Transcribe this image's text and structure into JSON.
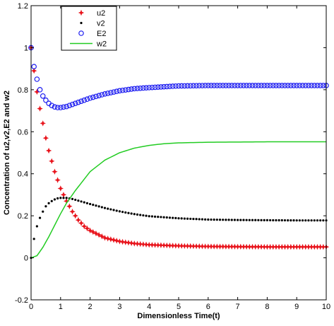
{
  "chart_data": {
    "type": "scatter",
    "title": "",
    "xlabel": "Dimensionless Time(t)",
    "ylabel": "Concentration of u2,v2,E2 and w2",
    "xlim": [
      0,
      10
    ],
    "ylim": [
      -0.2,
      1.2
    ],
    "xticks": [
      "0",
      "1",
      "2",
      "3",
      "4",
      "5",
      "6",
      "7",
      "8",
      "9",
      "10"
    ],
    "yticks": [
      "-0.2",
      "0",
      "0.2",
      "0.4",
      "0.6",
      "0.8",
      "1",
      "1.2"
    ],
    "legend_position": "top-left",
    "series": [
      {
        "name": "u2",
        "marker": "star",
        "color": "#e8141c",
        "x": [
          0,
          0.1,
          0.2,
          0.3,
          0.4,
          0.5,
          0.6,
          0.7,
          0.8,
          0.9,
          1.0,
          1.2,
          1.4,
          1.6,
          1.8,
          2.0,
          2.5,
          3.0,
          3.5,
          4.0,
          5.0,
          6.0,
          7.0,
          8.0,
          9.0,
          10.0
        ],
        "y": [
          1.0,
          0.89,
          0.79,
          0.71,
          0.64,
          0.57,
          0.51,
          0.46,
          0.41,
          0.37,
          0.33,
          0.27,
          0.22,
          0.18,
          0.15,
          0.13,
          0.095,
          0.078,
          0.068,
          0.062,
          0.057,
          0.054,
          0.053,
          0.052,
          0.052,
          0.052
        ]
      },
      {
        "name": "v2",
        "marker": "dot",
        "color": "#000000",
        "x": [
          0,
          0.1,
          0.2,
          0.3,
          0.4,
          0.5,
          0.6,
          0.7,
          0.8,
          0.9,
          1.0,
          1.2,
          1.4,
          1.6,
          1.8,
          2.0,
          2.5,
          3.0,
          3.5,
          4.0,
          5.0,
          6.0,
          7.0,
          8.0,
          9.0,
          10.0
        ],
        "y": [
          0.0,
          0.09,
          0.15,
          0.19,
          0.22,
          0.245,
          0.26,
          0.27,
          0.278,
          0.283,
          0.285,
          0.285,
          0.28,
          0.272,
          0.264,
          0.256,
          0.237,
          0.221,
          0.208,
          0.198,
          0.188,
          0.182,
          0.18,
          0.179,
          0.178,
          0.178
        ]
      },
      {
        "name": "E2",
        "marker": "circle",
        "color": "#1c1cf0",
        "x": [
          0,
          0.1,
          0.2,
          0.3,
          0.4,
          0.5,
          0.6,
          0.7,
          0.8,
          0.9,
          1.0,
          1.2,
          1.4,
          1.6,
          1.8,
          2.0,
          2.5,
          3.0,
          3.5,
          4.0,
          5.0,
          6.0,
          7.0,
          8.0,
          9.0,
          10.0
        ],
        "y": [
          1.0,
          0.91,
          0.85,
          0.8,
          0.77,
          0.75,
          0.735,
          0.725,
          0.718,
          0.715,
          0.715,
          0.72,
          0.73,
          0.74,
          0.75,
          0.76,
          0.78,
          0.795,
          0.805,
          0.81,
          0.818,
          0.82,
          0.82,
          0.82,
          0.82,
          0.82
        ]
      },
      {
        "name": "w2",
        "marker": "line",
        "color": "#22cc22",
        "x": [
          0,
          0.2,
          0.4,
          0.6,
          0.8,
          1.0,
          1.2,
          1.5,
          2.0,
          2.5,
          3.0,
          3.5,
          4.0,
          4.5,
          5.0,
          6.0,
          7.0,
          8.0,
          9.0,
          10.0
        ],
        "y": [
          0.0,
          0.01,
          0.05,
          0.1,
          0.155,
          0.21,
          0.26,
          0.32,
          0.41,
          0.465,
          0.5,
          0.522,
          0.535,
          0.543,
          0.547,
          0.55,
          0.551,
          0.552,
          0.552,
          0.552
        ]
      }
    ]
  }
}
